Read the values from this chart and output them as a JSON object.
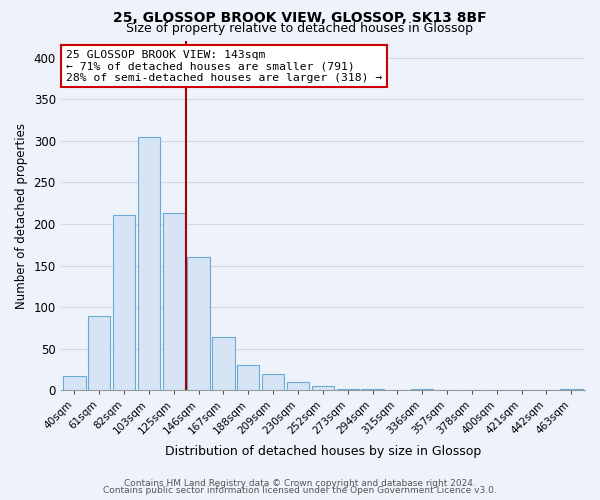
{
  "title": "25, GLOSSOP BROOK VIEW, GLOSSOP, SK13 8BF",
  "subtitle": "Size of property relative to detached houses in Glossop",
  "xlabel": "Distribution of detached houses by size in Glossop",
  "ylabel": "Number of detached properties",
  "bar_labels": [
    "40sqm",
    "61sqm",
    "82sqm",
    "103sqm",
    "125sqm",
    "146sqm",
    "167sqm",
    "188sqm",
    "209sqm",
    "230sqm",
    "252sqm",
    "273sqm",
    "294sqm",
    "315sqm",
    "336sqm",
    "357sqm",
    "378sqm",
    "400sqm",
    "421sqm",
    "442sqm",
    "463sqm"
  ],
  "bar_values": [
    17,
    89,
    211,
    304,
    213,
    160,
    64,
    30,
    20,
    10,
    5,
    2,
    1,
    0,
    1,
    0,
    0,
    0,
    0,
    0,
    1
  ],
  "bar_color": "#d6e4f5",
  "bar_edge_color": "#6aaad4",
  "vline_color": "#aa0000",
  "ylim": [
    0,
    420
  ],
  "yticks": [
    0,
    50,
    100,
    150,
    200,
    250,
    300,
    350,
    400
  ],
  "annotation_title": "25 GLOSSOP BROOK VIEW: 143sqm",
  "annotation_line1": "← 71% of detached houses are smaller (791)",
  "annotation_line2": "28% of semi-detached houses are larger (318) →",
  "annotation_box_color": "#ffffff",
  "annotation_box_edge": "#cc0000",
  "background_color": "#eef2fa",
  "grid_color": "#d0d8e8",
  "footer1": "Contains HM Land Registry data © Crown copyright and database right 2024.",
  "footer2": "Contains public sector information licensed under the Open Government Licence v3.0."
}
